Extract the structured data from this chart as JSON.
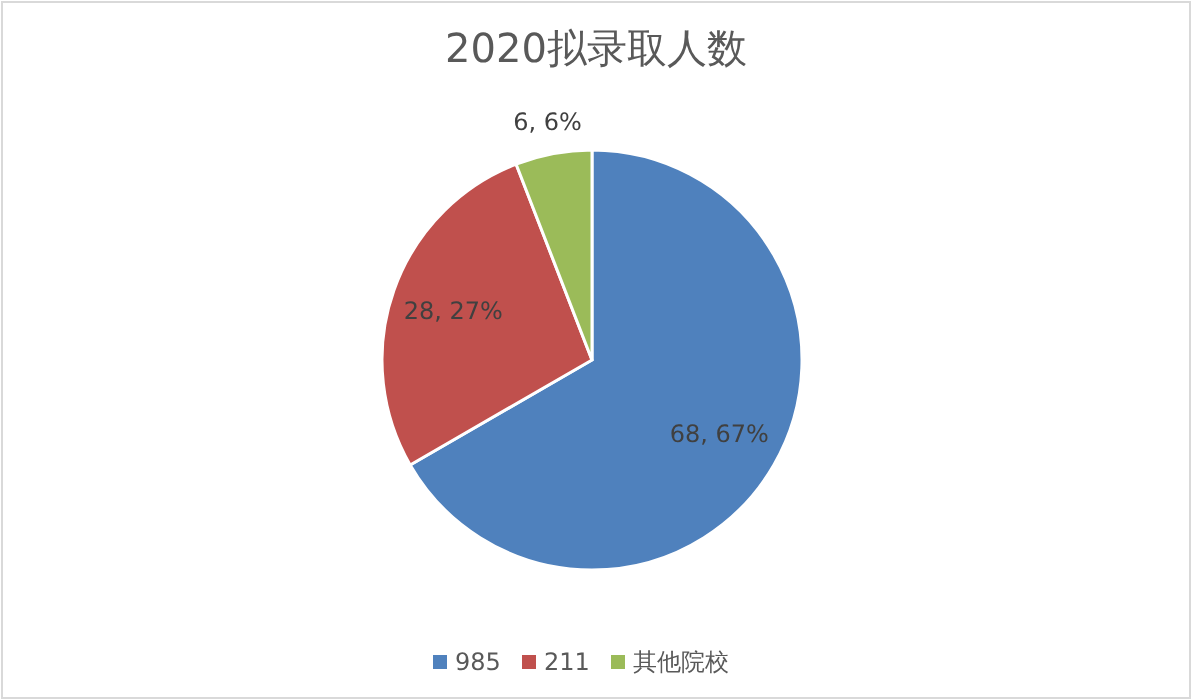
{
  "chart_data": {
    "type": "pie",
    "title": "2020拟录取人数",
    "categories": [
      "985",
      "211",
      "其他院校"
    ],
    "values": [
      68,
      28,
      6
    ],
    "colors": [
      "#4f81bd",
      "#c0504d",
      "#9bbb59"
    ],
    "value_labels": [
      "68, 67%",
      "28, 27%",
      "6, 6%"
    ],
    "legend": "bottom"
  }
}
